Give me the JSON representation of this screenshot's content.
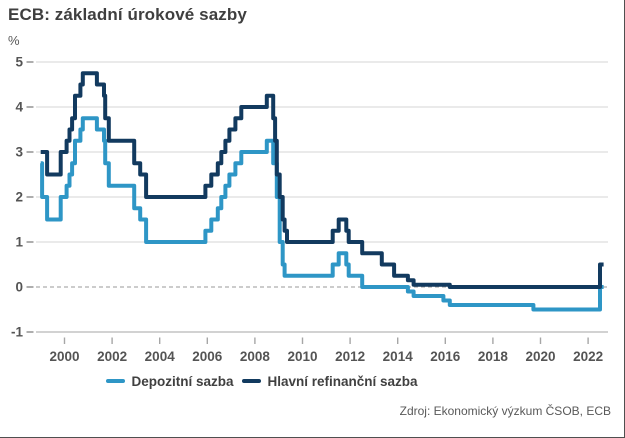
{
  "title": "ECB: základní úrokové sazby",
  "unit": "%",
  "source": "Zdroj: Ekonomický výzkum ČSOB, ECB",
  "legend": [
    {
      "label": "Depozitní sazba",
      "color": "#2e96c6"
    },
    {
      "label": "Hlavní refinanční sazba",
      "color": "#123a5f"
    }
  ],
  "chart_data": {
    "type": "line",
    "step": true,
    "title": "ECB: základní úrokové sazby",
    "ylabel": "%",
    "xlabel": "",
    "ylim": [
      -1,
      5
    ],
    "xlim": [
      1999.0,
      2022.65
    ],
    "y_ticks": [
      5,
      4,
      3,
      2,
      1,
      0,
      -1
    ],
    "x_ticks": [
      2000,
      2002,
      2004,
      2006,
      2008,
      2010,
      2012,
      2014,
      2016,
      2018,
      2020,
      2022
    ],
    "grid": "horizontal",
    "zero_line": "dashed",
    "legend_position": "bottom-center",
    "series": [
      {
        "name": "Depozitní sazba",
        "color": "#2e96c6",
        "points": [
          [
            1999.0,
            2.75
          ],
          [
            1999.06,
            2.0
          ],
          [
            1999.27,
            1.5
          ],
          [
            1999.84,
            2.0
          ],
          [
            2000.09,
            2.25
          ],
          [
            2000.21,
            2.5
          ],
          [
            2000.32,
            2.75
          ],
          [
            2000.44,
            3.25
          ],
          [
            2000.67,
            3.5
          ],
          [
            2000.77,
            3.75
          ],
          [
            2001.36,
            3.5
          ],
          [
            2001.66,
            3.25
          ],
          [
            2001.71,
            2.75
          ],
          [
            2001.86,
            2.25
          ],
          [
            2002.93,
            1.75
          ],
          [
            2003.18,
            1.5
          ],
          [
            2003.43,
            1.0
          ],
          [
            2005.92,
            1.25
          ],
          [
            2006.17,
            1.5
          ],
          [
            2006.44,
            1.75
          ],
          [
            2006.59,
            2.0
          ],
          [
            2006.76,
            2.25
          ],
          [
            2006.93,
            2.5
          ],
          [
            2007.18,
            2.75
          ],
          [
            2007.43,
            3.0
          ],
          [
            2008.5,
            3.25
          ],
          [
            2008.77,
            2.75
          ],
          [
            2008.92,
            2.0
          ],
          [
            2009.04,
            1.0
          ],
          [
            2009.17,
            0.5
          ],
          [
            2009.25,
            0.25
          ],
          [
            2011.27,
            0.5
          ],
          [
            2011.52,
            0.75
          ],
          [
            2011.84,
            0.5
          ],
          [
            2011.94,
            0.25
          ],
          [
            2012.51,
            0.0
          ],
          [
            2014.43,
            -0.1
          ],
          [
            2014.67,
            -0.2
          ],
          [
            2015.92,
            -0.3
          ],
          [
            2016.19,
            -0.4
          ],
          [
            2019.7,
            -0.5
          ],
          [
            2022.5,
            0.0
          ]
        ]
      },
      {
        "name": "Hlavní refinanční sazba",
        "color": "#123a5f",
        "points": [
          [
            1999.0,
            3.0
          ],
          [
            1999.27,
            2.5
          ],
          [
            1999.84,
            3.0
          ],
          [
            2000.09,
            3.25
          ],
          [
            2000.21,
            3.5
          ],
          [
            2000.32,
            3.75
          ],
          [
            2000.44,
            4.25
          ],
          [
            2000.67,
            4.5
          ],
          [
            2000.77,
            4.75
          ],
          [
            2001.36,
            4.5
          ],
          [
            2001.66,
            4.25
          ],
          [
            2001.71,
            3.75
          ],
          [
            2001.86,
            3.25
          ],
          [
            2002.93,
            2.75
          ],
          [
            2003.18,
            2.5
          ],
          [
            2003.43,
            2.0
          ],
          [
            2005.92,
            2.25
          ],
          [
            2006.17,
            2.5
          ],
          [
            2006.44,
            2.75
          ],
          [
            2006.59,
            3.0
          ],
          [
            2006.76,
            3.25
          ],
          [
            2006.93,
            3.5
          ],
          [
            2007.18,
            3.75
          ],
          [
            2007.43,
            4.0
          ],
          [
            2008.5,
            4.25
          ],
          [
            2008.77,
            3.75
          ],
          [
            2008.85,
            3.25
          ],
          [
            2008.92,
            2.5
          ],
          [
            2009.04,
            2.0
          ],
          [
            2009.17,
            1.5
          ],
          [
            2009.25,
            1.25
          ],
          [
            2009.35,
            1.0
          ],
          [
            2011.27,
            1.25
          ],
          [
            2011.52,
            1.5
          ],
          [
            2011.84,
            1.25
          ],
          [
            2011.94,
            1.0
          ],
          [
            2012.51,
            0.75
          ],
          [
            2013.33,
            0.5
          ],
          [
            2013.85,
            0.25
          ],
          [
            2014.43,
            0.15
          ],
          [
            2014.67,
            0.05
          ],
          [
            2016.19,
            0.0
          ],
          [
            2022.5,
            0.5
          ]
        ]
      }
    ]
  }
}
